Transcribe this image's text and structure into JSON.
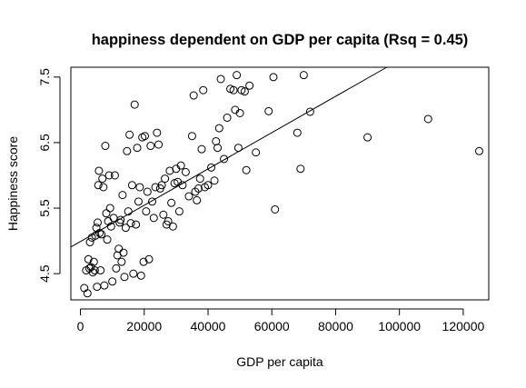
{
  "chart_data": {
    "type": "scatter",
    "title": "happiness dependent on GDP per capita (Rsq = 0.45)",
    "xlabel": "GDP per capita",
    "ylabel": "Happiness score",
    "xlim": [
      -3000,
      128000
    ],
    "ylim": [
      4.1,
      7.65
    ],
    "x_ticks": [
      0,
      20000,
      40000,
      60000,
      80000,
      100000,
      120000
    ],
    "x_tick_labels": [
      "0",
      "20000",
      "40000",
      "60000",
      "80000",
      "100000",
      "120000"
    ],
    "y_ticks": [
      4.5,
      5.5,
      6.5,
      7.5
    ],
    "y_tick_labels": [
      "4.5",
      "5.5",
      "6.5",
      "7.5"
    ],
    "grid": false,
    "fit_line": {
      "intercept": 4.99,
      "slope": 2.77e-05
    },
    "points": [
      [
        1200,
        4.28
      ],
      [
        1800,
        4.55
      ],
      [
        2200,
        4.2
      ],
      [
        2500,
        4.72
      ],
      [
        2800,
        4.58
      ],
      [
        3000,
        4.98
      ],
      [
        3300,
        4.6
      ],
      [
        3600,
        5.05
      ],
      [
        3900,
        4.52
      ],
      [
        4200,
        4.68
      ],
      [
        4500,
        4.55
      ],
      [
        4700,
        5.08
      ],
      [
        5000,
        5.2
      ],
      [
        5200,
        4.3
      ],
      [
        5400,
        5.28
      ],
      [
        5600,
        5.85
      ],
      [
        5800,
        6.07
      ],
      [
        6000,
        5.12
      ],
      [
        6300,
        4.55
      ],
      [
        6600,
        5.1
      ],
      [
        6900,
        5.95
      ],
      [
        7200,
        5.82
      ],
      [
        7500,
        4.32
      ],
      [
        7800,
        6.45
      ],
      [
        8100,
        5.42
      ],
      [
        8400,
        5.02
      ],
      [
        8700,
        5.3
      ],
      [
        9000,
        6.0
      ],
      [
        9300,
        5.5
      ],
      [
        9600,
        5.22
      ],
      [
        10000,
        4.38
      ],
      [
        10400,
        5.35
      ],
      [
        10800,
        6.0
      ],
      [
        11200,
        4.58
      ],
      [
        11600,
        4.78
      ],
      [
        12000,
        4.88
      ],
      [
        12300,
        5.28
      ],
      [
        12600,
        5.32
      ],
      [
        12900,
        4.68
      ],
      [
        13200,
        5.7
      ],
      [
        13500,
        4.82
      ],
      [
        13800,
        4.45
      ],
      [
        14200,
        5.2
      ],
      [
        14600,
        6.37
      ],
      [
        15000,
        5.45
      ],
      [
        15400,
        6.62
      ],
      [
        15800,
        5.27
      ],
      [
        16200,
        5.85
      ],
      [
        16600,
        4.5
      ],
      [
        17000,
        7.08
      ],
      [
        17400,
        5.25
      ],
      [
        17800,
        6.42
      ],
      [
        18200,
        5.6
      ],
      [
        18600,
        5.82
      ],
      [
        19000,
        4.47
      ],
      [
        19400,
        6.58
      ],
      [
        19800,
        4.68
      ],
      [
        20200,
        6.6
      ],
      [
        20600,
        5.45
      ],
      [
        21000,
        5.75
      ],
      [
        21500,
        4.72
      ],
      [
        22000,
        6.45
      ],
      [
        22500,
        5.6
      ],
      [
        23000,
        5.35
      ],
      [
        23500,
        5.82
      ],
      [
        24000,
        6.65
      ],
      [
        24500,
        6.47
      ],
      [
        25000,
        5.8
      ],
      [
        25500,
        5.85
      ],
      [
        26000,
        5.4
      ],
      [
        26500,
        5.95
      ],
      [
        27000,
        5.25
      ],
      [
        27500,
        5.3
      ],
      [
        28000,
        6.07
      ],
      [
        28500,
        5.58
      ],
      [
        29000,
        5.22
      ],
      [
        29500,
        5.88
      ],
      [
        30000,
        6.1
      ],
      [
        30500,
        5.9
      ],
      [
        31000,
        5.45
      ],
      [
        31500,
        6.15
      ],
      [
        32000,
        5.85
      ],
      [
        33000,
        6.05
      ],
      [
        34000,
        5.68
      ],
      [
        35000,
        6.6
      ],
      [
        35500,
        7.22
      ],
      [
        36000,
        5.75
      ],
      [
        36500,
        5.62
      ],
      [
        37000,
        5.8
      ],
      [
        37500,
        5.95
      ],
      [
        38000,
        6.4
      ],
      [
        38500,
        7.3
      ],
      [
        39000,
        5.82
      ],
      [
        40000,
        5.85
      ],
      [
        41000,
        6.12
      ],
      [
        42000,
        5.92
      ],
      [
        42500,
        6.52
      ],
      [
        43000,
        6.42
      ],
      [
        43500,
        6.72
      ],
      [
        44000,
        7.47
      ],
      [
        45000,
        6.25
      ],
      [
        46000,
        6.88
      ],
      [
        47000,
        7.32
      ],
      [
        48000,
        7.3
      ],
      [
        48500,
        7.0
      ],
      [
        49000,
        7.53
      ],
      [
        49500,
        6.42
      ],
      [
        50000,
        6.95
      ],
      [
        50500,
        7.3
      ],
      [
        51500,
        7.28
      ],
      [
        52000,
        6.08
      ],
      [
        53000,
        7.37
      ],
      [
        55000,
        6.35
      ],
      [
        59000,
        6.98
      ],
      [
        60500,
        7.5
      ],
      [
        61000,
        5.48
      ],
      [
        68000,
        6.65
      ],
      [
        69000,
        6.1
      ],
      [
        70000,
        7.53
      ],
      [
        72000,
        6.97
      ],
      [
        90000,
        6.58
      ],
      [
        109000,
        6.86
      ],
      [
        125000,
        6.37
      ]
    ]
  }
}
